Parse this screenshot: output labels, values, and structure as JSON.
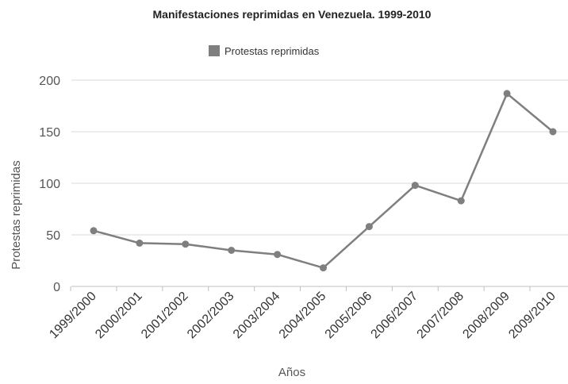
{
  "chart_data": {
    "type": "line",
    "title": "Manifestaciones reprimidas en Venezuela. 1999-2010",
    "xlabel": "Años",
    "ylabel": "Protestas reprimidas",
    "categories": [
      "1999/2000",
      "2000/2001",
      "2001/2002",
      "2002/2003",
      "2003/2004",
      "2004/2005",
      "2005/2006",
      "2006/2007",
      "2007/2008",
      "2008/2009",
      "2009/2010"
    ],
    "series": [
      {
        "name": "Protestas reprimidas",
        "values": [
          54,
          42,
          41,
          35,
          31,
          18,
          58,
          98,
          83,
          187,
          150
        ],
        "color": "#7f7f7f"
      }
    ],
    "ylim": [
      0,
      200
    ],
    "yticks": [
      "0",
      "50",
      "100",
      "150",
      "200"
    ],
    "grid": true,
    "legend_position": "top-center"
  }
}
